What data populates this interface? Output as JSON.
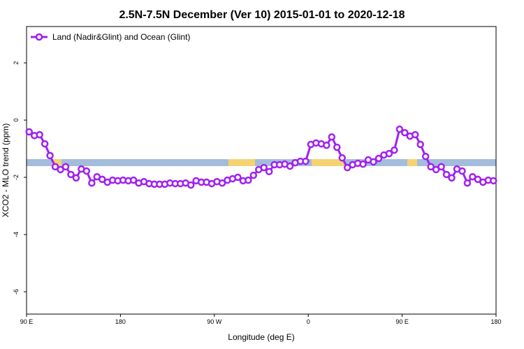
{
  "chart_data": {
    "type": "line",
    "title": "2.5N-7.5N December (Ver 10)   2015-01-01 to 2020-12-18",
    "x_label": "Longitude (deg E)",
    "y_label": "XCO2 - MLO trend (ppm)",
    "xlim": [
      90,
      540
    ],
    "ylim": [
      -6.78,
      3.27
    ],
    "xticks": [
      {
        "value": 90,
        "label": "90 E"
      },
      {
        "value": 180,
        "label": "180"
      },
      {
        "value": 270,
        "label": "90 W"
      },
      {
        "value": 360,
        "label": "0"
      },
      {
        "value": 450,
        "label": "90 E"
      },
      {
        "value": 540,
        "label": "180"
      }
    ],
    "yticks": [
      -6,
      -4,
      -2,
      0,
      2
    ],
    "legend": "top-left",
    "x": [
      92.5,
      97.5,
      102.5,
      107.5,
      112.5,
      117.5,
      122.5,
      127.5,
      132.5,
      137.5,
      142.5,
      147.5,
      152.5,
      157.5,
      162.5,
      167.5,
      172.5,
      177.5,
      182.5,
      187.5,
      192.5,
      197.5,
      202.5,
      207.5,
      212.5,
      217.5,
      222.5,
      227.5,
      232.5,
      237.5,
      242.5,
      247.5,
      252.5,
      257.5,
      262.5,
      267.5,
      272.5,
      277.5,
      282.5,
      287.5,
      292.5,
      297.5,
      302.5,
      307.5,
      312.5,
      317.5,
      322.5,
      327.5,
      332.5,
      337.5,
      342.5,
      347.5,
      352.5,
      357.5,
      362.5,
      367.5,
      372.5,
      377.5,
      382.5,
      387.5,
      392.5,
      397.5,
      402.5,
      407.5,
      412.5,
      417.5,
      422.5,
      427.5,
      432.5,
      437.5,
      442.5,
      447.5,
      452.5,
      457.5,
      462.5,
      467.5,
      472.5,
      477.5,
      482.5,
      487.5,
      492.5,
      497.5,
      502.5,
      507.5,
      512.5,
      517.5,
      522.5,
      527.5,
      532.5,
      537.5
    ],
    "series": [
      {
        "name": "Land (Nadir&Glint) and Ocean (Glint)",
        "color": "#a020f0",
        "values": [
          -0.41,
          -0.54,
          -0.51,
          -0.83,
          -1.24,
          -1.63,
          -1.73,
          -1.63,
          -1.9,
          -2.02,
          -1.71,
          -1.78,
          -2.2,
          -1.98,
          -2.07,
          -2.17,
          -2.1,
          -2.12,
          -2.1,
          -2.12,
          -2.1,
          -2.2,
          -2.15,
          -2.22,
          -2.24,
          -2.24,
          -2.24,
          -2.2,
          -2.22,
          -2.22,
          -2.2,
          -2.27,
          -2.12,
          -2.17,
          -2.17,
          -2.22,
          -2.15,
          -2.2,
          -2.1,
          -2.05,
          -2.0,
          -2.12,
          -2.1,
          -1.93,
          -1.73,
          -1.66,
          -1.8,
          -1.56,
          -1.56,
          -1.54,
          -1.61,
          -1.49,
          -1.44,
          -1.44,
          -0.85,
          -0.8,
          -0.83,
          -0.88,
          -0.59,
          -0.95,
          -1.32,
          -1.66,
          -1.56,
          -1.51,
          -1.54,
          -1.39,
          -1.46,
          -1.34,
          -1.22,
          -1.17,
          -1.05,
          -0.32,
          -0.44,
          -0.56,
          -0.51,
          -0.85,
          -1.27,
          -1.63,
          -1.73,
          -1.63,
          -1.9,
          -2.02,
          -1.71,
          -1.78,
          -2.2,
          -1.98,
          -2.07,
          -2.17,
          -2.1,
          -2.12
        ]
      }
    ]
  }
}
